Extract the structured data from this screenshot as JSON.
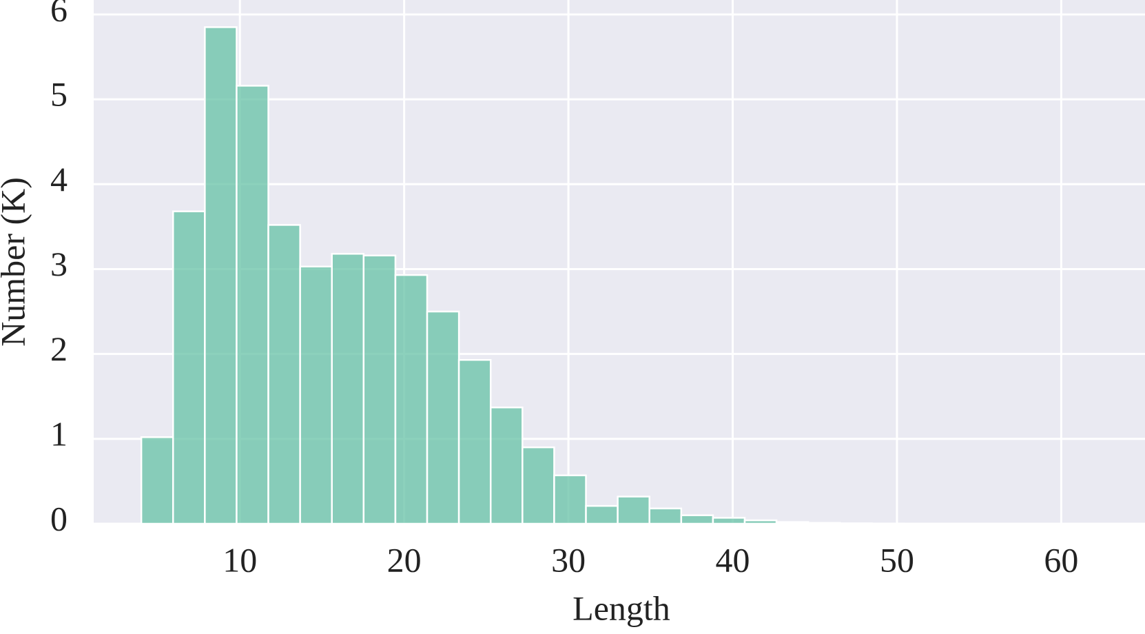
{
  "chart_data": {
    "type": "histogram",
    "xlabel": "Length",
    "ylabel": "Number (K)",
    "bins": [
      4,
      5.933,
      7.867,
      9.8,
      11.733,
      13.667,
      15.6,
      17.533,
      19.467,
      21.4,
      23.333,
      25.267,
      27.2,
      29.133,
      31.067,
      33,
      34.933,
      36.867,
      38.8,
      40.733,
      42.667,
      44.6,
      46.533,
      48.467,
      50.4,
      52.333,
      54.267,
      56.2,
      58.133,
      60.067,
      62
    ],
    "values": [
      1.02,
      3.68,
      5.85,
      5.16,
      3.52,
      3.03,
      3.18,
      3.16,
      2.93,
      2.5,
      1.93,
      1.37,
      0.9,
      0.57,
      0.21,
      0.32,
      0.18,
      0.1,
      0.07,
      0.04,
      0.02,
      0.01,
      0.005,
      0.003,
      0.002,
      0.001,
      0.001,
      0,
      0,
      0.001
    ],
    "color": "#66c2a5",
    "xlim": [
      1.1,
      65.1
    ],
    "ylim": [
      0,
      6.17
    ],
    "xticks": [
      10,
      20,
      30,
      40,
      50,
      60
    ],
    "yticks": [
      0,
      1,
      2,
      3,
      4,
      5,
      6
    ],
    "grid": true
  }
}
